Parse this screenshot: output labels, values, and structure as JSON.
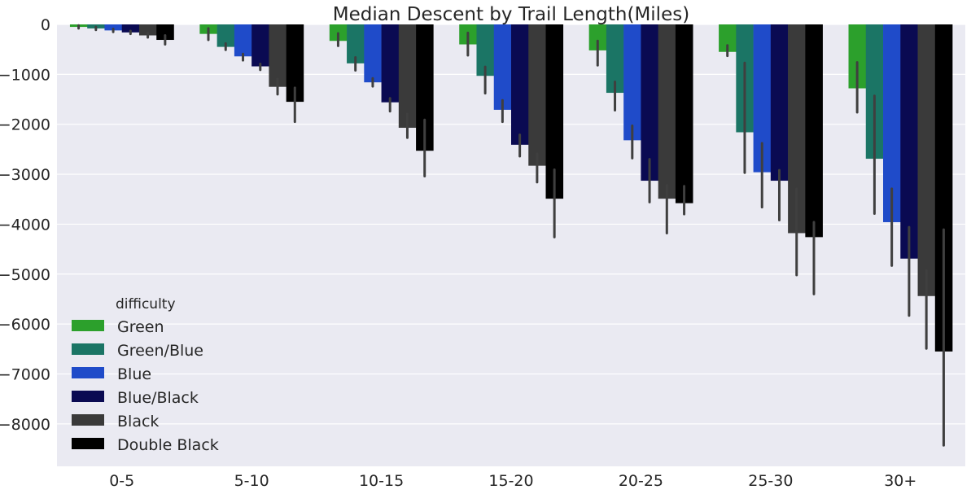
{
  "chart_data": {
    "type": "bar",
    "title": "Median Descent by Trail Length(Miles)",
    "xlabel": "",
    "ylabel": "",
    "categories": [
      "0-5",
      "5-10",
      "10-15",
      "15-20",
      "20-25",
      "25-30",
      "30+"
    ],
    "ylim": [
      -8850,
      0
    ],
    "yticks": [
      0,
      -1000,
      -2000,
      -3000,
      -4000,
      -5000,
      -6000,
      -7000,
      -8000
    ],
    "ytick_labels": [
      "0",
      "−1000",
      "−2000",
      "−3000",
      "−4000",
      "−5000",
      "−6000",
      "−7000",
      "−8000"
    ],
    "grid": true,
    "legend": {
      "title": "difficulty",
      "placement": "lower-left"
    },
    "series": [
      {
        "name": "Green",
        "color": "#2ca02c",
        "values": [
          -50,
          -190,
          -330,
          -400,
          -520,
          -550,
          -1280
        ],
        "errors": [
          [
            -20,
            -80
          ],
          [
            -80,
            -310
          ],
          [
            -180,
            -430
          ],
          [
            -170,
            -620
          ],
          [
            -330,
            -820
          ],
          [
            -420,
            -630
          ],
          [
            -760,
            -1760
          ]
        ]
      },
      {
        "name": "Green/Blue",
        "color": "#1b7565",
        "values": [
          -80,
          -450,
          -780,
          -1030,
          -1370,
          -2160,
          -2690
        ],
        "errors": [
          [
            -50,
            -110
          ],
          [
            -380,
            -510
          ],
          [
            -660,
            -920
          ],
          [
            -850,
            -1380
          ],
          [
            -1150,
            -1720
          ],
          [
            -770,
            -2970
          ],
          [
            -1430,
            -3790
          ]
        ]
      },
      {
        "name": "Blue",
        "color": "#1f4bc9",
        "values": [
          -120,
          -640,
          -1160,
          -1710,
          -2320,
          -2960,
          -3960
        ],
        "errors": [
          [
            -90,
            -150
          ],
          [
            -590,
            -720
          ],
          [
            -1080,
            -1240
          ],
          [
            -1520,
            -1950
          ],
          [
            -2030,
            -2680
          ],
          [
            -2380,
            -3660
          ],
          [
            -3290,
            -4830
          ]
        ]
      },
      {
        "name": "Blue/Black",
        "color": "#0a0a52",
        "values": [
          -160,
          -840,
          -1560,
          -2410,
          -3130,
          -3130,
          -4690
        ],
        "errors": [
          [
            -130,
            -190
          ],
          [
            -790,
            -910
          ],
          [
            -1480,
            -1740
          ],
          [
            -2210,
            -2640
          ],
          [
            -2700,
            -3560
          ],
          [
            -2920,
            -3920
          ],
          [
            -4060,
            -5830
          ]
        ]
      },
      {
        "name": "Black",
        "color": "#3a3a3a",
        "values": [
          -220,
          -1250,
          -2070,
          -2830,
          -3490,
          -4180,
          -5440
        ],
        "errors": [
          [
            -170,
            -260
          ],
          [
            -1090,
            -1400
          ],
          [
            -1790,
            -2270
          ],
          [
            -2590,
            -3160
          ],
          [
            -3220,
            -4180
          ],
          [
            -3290,
            -5020
          ],
          [
            -4930,
            -6490
          ]
        ]
      },
      {
        "name": "Double Black",
        "color": "#000000",
        "values": [
          -310,
          -1550,
          -2530,
          -3490,
          -3580,
          -4260,
          -6550
        ],
        "errors": [
          [
            -220,
            -400
          ],
          [
            -1270,
            -1950
          ],
          [
            -1910,
            -3040
          ],
          [
            -2910,
            -4260
          ],
          [
            -3240,
            -3800
          ],
          [
            -3960,
            -5400
          ],
          [
            -4110,
            -8430
          ]
        ]
      }
    ]
  }
}
